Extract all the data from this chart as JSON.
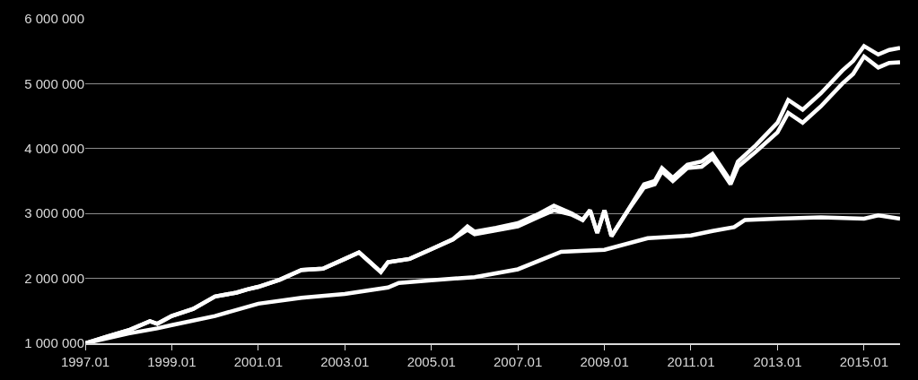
{
  "chart_data": {
    "type": "line",
    "xlim": [
      "1997-01",
      "2015-11"
    ],
    "xticks": [
      {
        "value": "1997-01",
        "label": "1997.01"
      },
      {
        "value": "1999-01",
        "label": "1999.01"
      },
      {
        "value": "2001-01",
        "label": "2001.01"
      },
      {
        "value": "2003-01",
        "label": "2003.01"
      },
      {
        "value": "2005-01",
        "label": "2005.01"
      },
      {
        "value": "2007-01",
        "label": "2007.01"
      },
      {
        "value": "2009-01",
        "label": "2009.01"
      },
      {
        "value": "2011-01",
        "label": "2011.01"
      },
      {
        "value": "2013-01",
        "label": "2013.01"
      },
      {
        "value": "2015-01",
        "label": "2015.01"
      }
    ],
    "ylim": [
      1000000,
      6000000
    ],
    "yticks": [
      {
        "value": 1000000,
        "label": "1 000 000"
      },
      {
        "value": 2000000,
        "label": "2 000 000"
      },
      {
        "value": 3000000,
        "label": "3 000 000"
      },
      {
        "value": 4000000,
        "label": "4 000 000"
      },
      {
        "value": 5000000,
        "label": "5 000 000"
      },
      {
        "value": 6000000,
        "label": "6 000 000"
      }
    ],
    "grid": "y",
    "line_style": "solid",
    "series": [
      {
        "color": "#ffffff",
        "x": [
          "1997-01",
          "1997-07",
          "1998-01",
          "1998-07",
          "1998-09",
          "1999-01",
          "1999-07",
          "2000-01",
          "2000-07",
          "2000-10",
          "2001-01",
          "2001-07",
          "2002-01",
          "2002-07",
          "2003-01",
          "2003-05",
          "2003-08",
          "2003-11",
          "2004-01",
          "2004-07",
          "2005-01",
          "2005-07",
          "2005-11",
          "2006-01",
          "2006-07",
          "2007-01",
          "2007-07",
          "2007-11",
          "2008-04",
          "2008-07",
          "2008-09",
          "2008-11",
          "2009-01",
          "2009-03",
          "2009-07",
          "2009-12",
          "2010-03",
          "2010-05",
          "2010-08",
          "2010-12",
          "2011-04",
          "2011-07",
          "2011-09",
          "2011-12",
          "2012-02",
          "2012-07",
          "2013-01",
          "2013-04",
          "2013-08",
          "2014-01",
          "2014-07",
          "2014-10",
          "2015-01",
          "2015-05",
          "2015-08",
          "2015-11"
        ],
        "values": [
          1000000,
          1100000,
          1200000,
          1340000,
          1300000,
          1420000,
          1530000,
          1720000,
          1780000,
          1830000,
          1870000,
          1980000,
          2130000,
          2150000,
          2300000,
          2400000,
          2250000,
          2100000,
          2250000,
          2300000,
          2450000,
          2600000,
          2800000,
          2720000,
          2780000,
          2850000,
          3000000,
          3120000,
          3000000,
          2900000,
          3050000,
          2700000,
          3050000,
          2650000,
          3000000,
          3450000,
          3500000,
          3700000,
          3550000,
          3750000,
          3800000,
          3920000,
          3750000,
          3500000,
          3800000,
          4050000,
          4400000,
          4750000,
          4600000,
          4850000,
          5200000,
          5350000,
          5580000,
          5450000,
          5520000,
          5550000
        ]
      },
      {
        "color": "#ffffff",
        "x": [
          "1997-01",
          "1997-07",
          "1998-01",
          "1998-07",
          "1998-09",
          "1999-01",
          "1999-07",
          "2000-01",
          "2000-07",
          "2000-10",
          "2001-01",
          "2001-07",
          "2002-01",
          "2002-07",
          "2003-01",
          "2003-05",
          "2003-08",
          "2003-11",
          "2004-01",
          "2004-07",
          "2005-01",
          "2005-07",
          "2005-11",
          "2006-01",
          "2006-07",
          "2007-01",
          "2007-07",
          "2007-11",
          "2008-04",
          "2008-07",
          "2008-09",
          "2008-11",
          "2009-01",
          "2009-03",
          "2009-07",
          "2009-12",
          "2010-03",
          "2010-05",
          "2010-08",
          "2010-12",
          "2011-04",
          "2011-07",
          "2011-09",
          "2011-12",
          "2012-02",
          "2012-07",
          "2013-01",
          "2013-04",
          "2013-08",
          "2014-01",
          "2014-07",
          "2014-10",
          "2015-01",
          "2015-05",
          "2015-08",
          "2015-11"
        ],
        "values": [
          1000000,
          1100000,
          1200000,
          1340000,
          1300000,
          1420000,
          1530000,
          1720000,
          1780000,
          1830000,
          1870000,
          1980000,
          2130000,
          2150000,
          2300000,
          2400000,
          2250000,
          2100000,
          2250000,
          2300000,
          2450000,
          2600000,
          2750000,
          2680000,
          2740000,
          2800000,
          2950000,
          3050000,
          2980000,
          2900000,
          3050000,
          2700000,
          3050000,
          2650000,
          3000000,
          3400000,
          3450000,
          3650000,
          3500000,
          3700000,
          3720000,
          3850000,
          3700000,
          3450000,
          3720000,
          3950000,
          4250000,
          4550000,
          4400000,
          4650000,
          5000000,
          5150000,
          5420000,
          5250000,
          5320000,
          5330000
        ]
      },
      {
        "color": "#ffffff",
        "x": [
          "1997-01",
          "1998-01",
          "1998-09",
          "1999-01",
          "2000-01",
          "2001-01",
          "2002-01",
          "2003-01",
          "2004-01",
          "2004-04",
          "2005-01",
          "2006-01",
          "2007-01",
          "2008-01",
          "2009-01",
          "2010-01",
          "2011-01",
          "2011-07",
          "2012-01",
          "2012-04",
          "2013-01",
          "2014-01",
          "2015-01",
          "2015-05",
          "2015-11"
        ],
        "values": [
          1000000,
          1150000,
          1230000,
          1280000,
          1420000,
          1610000,
          1700000,
          1760000,
          1860000,
          1930000,
          1970000,
          2020000,
          2140000,
          2410000,
          2440000,
          2620000,
          2660000,
          2730000,
          2790000,
          2900000,
          2920000,
          2940000,
          2920000,
          2970000,
          2920000
        ]
      }
    ]
  }
}
